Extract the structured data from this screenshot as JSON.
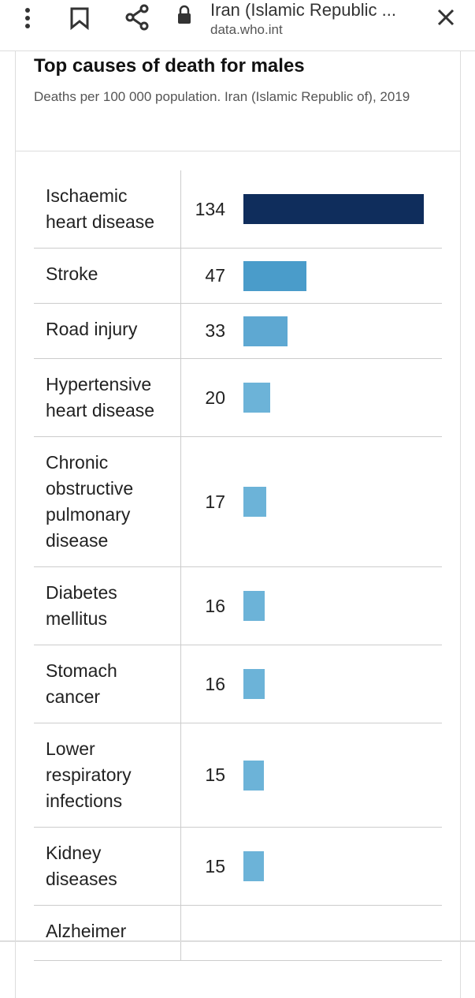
{
  "browser": {
    "page_title": "Iran (Islamic Republic ...",
    "url": "data.who.int"
  },
  "chart_data": {
    "type": "bar",
    "title": "Top causes of death for males",
    "subtitle": "Deaths per 100 000 population. Iran (Islamic Republic of), 2019",
    "categories": [
      "Ischaemic heart disease",
      "Stroke",
      "Road injury",
      "Hypertensive heart disease",
      "Chronic obstructive pulmonary disease",
      "Diabetes mellitus",
      "Stomach cancer",
      "Lower respiratory infections",
      "Kidney diseases",
      "Alzheimer"
    ],
    "values": [
      134,
      47,
      33,
      20,
      17,
      16,
      16,
      15,
      15,
      null
    ],
    "colors": [
      "#0f2d5c",
      "#4a9cca",
      "#5ea8d2",
      "#6cb3d8",
      "#6cb3d8",
      "#6cb3d8",
      "#6cb3d8",
      "#6cb3d8",
      "#6cb3d8"
    ]
  }
}
